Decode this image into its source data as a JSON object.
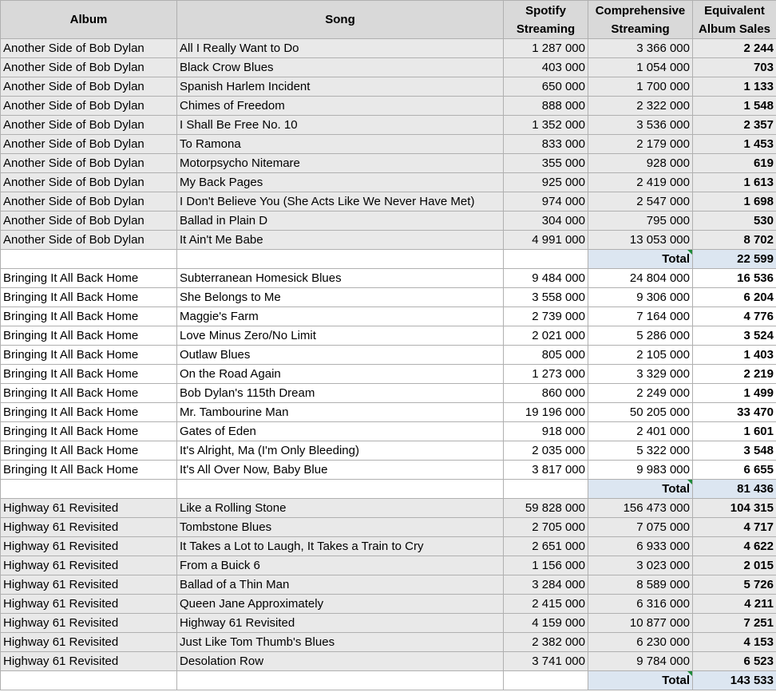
{
  "headers": {
    "album": "Album",
    "song": "Song",
    "spotify_line1": "Spotify",
    "spotify_line2": "Streaming",
    "comprehensive_line1": "Comprehensive",
    "comprehensive_line2": "Streaming",
    "equivalent_line1": "Equivalent",
    "equivalent_line2": "Album Sales"
  },
  "groups": [
    {
      "album": "Another Side of Bob Dylan",
      "shade": true,
      "rows": [
        {
          "song": "All I Really Want to Do",
          "spotify": "1 287 000",
          "comprehensive": "3 366 000",
          "equivalent": "2 244"
        },
        {
          "song": "Black Crow Blues",
          "spotify": "403 000",
          "comprehensive": "1 054 000",
          "equivalent": "703"
        },
        {
          "song": "Spanish Harlem Incident",
          "spotify": "650 000",
          "comprehensive": "1 700 000",
          "equivalent": "1 133"
        },
        {
          "song": "Chimes of Freedom",
          "spotify": "888 000",
          "comprehensive": "2 322 000",
          "equivalent": "1 548"
        },
        {
          "song": "I Shall Be Free No. 10",
          "spotify": "1 352 000",
          "comprehensive": "3 536 000",
          "equivalent": "2 357"
        },
        {
          "song": "To Ramona",
          "spotify": "833 000",
          "comprehensive": "2 179 000",
          "equivalent": "1 453"
        },
        {
          "song": "Motorpsycho Nitemare",
          "spotify": "355 000",
          "comprehensive": "928 000",
          "equivalent": "619"
        },
        {
          "song": "My Back Pages",
          "spotify": "925 000",
          "comprehensive": "2 419 000",
          "equivalent": "1 613"
        },
        {
          "song": "I Don't Believe You (She Acts Like We Never Have Met)",
          "spotify": "974 000",
          "comprehensive": "2 547 000",
          "equivalent": "1 698"
        },
        {
          "song": "Ballad in Plain D",
          "spotify": "304 000",
          "comprehensive": "795 000",
          "equivalent": "530"
        },
        {
          "song": "It Ain't Me Babe",
          "spotify": "4 991 000",
          "comprehensive": "13 053 000",
          "equivalent": "8 702"
        }
      ],
      "total_label": "Total",
      "total": "22 599"
    },
    {
      "album": "Bringing It All Back Home",
      "shade": false,
      "rows": [
        {
          "song": "Subterranean Homesick Blues",
          "spotify": "9 484 000",
          "comprehensive": "24 804 000",
          "equivalent": "16 536"
        },
        {
          "song": "She Belongs to Me",
          "spotify": "3 558 000",
          "comprehensive": "9 306 000",
          "equivalent": "6 204"
        },
        {
          "song": "Maggie's Farm",
          "spotify": "2 739 000",
          "comprehensive": "7 164 000",
          "equivalent": "4 776"
        },
        {
          "song": "Love Minus Zero/No Limit",
          "spotify": "2 021 000",
          "comprehensive": "5 286 000",
          "equivalent": "3 524"
        },
        {
          "song": "Outlaw Blues",
          "spotify": "805 000",
          "comprehensive": "2 105 000",
          "equivalent": "1 403"
        },
        {
          "song": "On the Road Again",
          "spotify": "1 273 000",
          "comprehensive": "3 329 000",
          "equivalent": "2 219"
        },
        {
          "song": "Bob Dylan's 115th Dream",
          "spotify": "860 000",
          "comprehensive": "2 249 000",
          "equivalent": "1 499"
        },
        {
          "song": "Mr. Tambourine Man",
          "spotify": "19 196 000",
          "comprehensive": "50 205 000",
          "equivalent": "33 470"
        },
        {
          "song": "Gates of Eden",
          "spotify": "918 000",
          "comprehensive": "2 401 000",
          "equivalent": "1 601"
        },
        {
          "song": "It's Alright, Ma (I'm Only Bleeding)",
          "spotify": "2 035 000",
          "comprehensive": "5 322 000",
          "equivalent": "3 548"
        },
        {
          "song": "It's All Over Now, Baby Blue",
          "spotify": "3 817 000",
          "comprehensive": "9 983 000",
          "equivalent": "6 655"
        }
      ],
      "total_label": "Total",
      "total": "81 436"
    },
    {
      "album": "Highway 61 Revisited",
      "shade": true,
      "rows": [
        {
          "song": "Like a Rolling Stone",
          "spotify": "59 828 000",
          "comprehensive": "156 473 000",
          "equivalent": "104 315"
        },
        {
          "song": "Tombstone Blues",
          "spotify": "2 705 000",
          "comprehensive": "7 075 000",
          "equivalent": "4 717"
        },
        {
          "song": "It Takes a Lot to Laugh, It Takes a Train to Cry",
          "spotify": "2 651 000",
          "comprehensive": "6 933 000",
          "equivalent": "4 622"
        },
        {
          "song": "From a Buick 6",
          "spotify": "1 156 000",
          "comprehensive": "3 023 000",
          "equivalent": "2 015"
        },
        {
          "song": "Ballad of a Thin Man",
          "spotify": "3 284 000",
          "comprehensive": "8 589 000",
          "equivalent": "5 726"
        },
        {
          "song": "Queen Jane Approximately",
          "spotify": "2 415 000",
          "comprehensive": "6 316 000",
          "equivalent": "4 211"
        },
        {
          "song": "Highway 61 Revisited",
          "spotify": "4 159 000",
          "comprehensive": "10 877 000",
          "equivalent": "7 251"
        },
        {
          "song": "Just Like Tom Thumb's Blues",
          "spotify": "2 382 000",
          "comprehensive": "6 230 000",
          "equivalent": "4 153"
        },
        {
          "song": "Desolation Row",
          "spotify": "3 741 000",
          "comprehensive": "9 784 000",
          "equivalent": "6 523"
        }
      ],
      "total_label": "Total",
      "total": "143 533"
    }
  ]
}
